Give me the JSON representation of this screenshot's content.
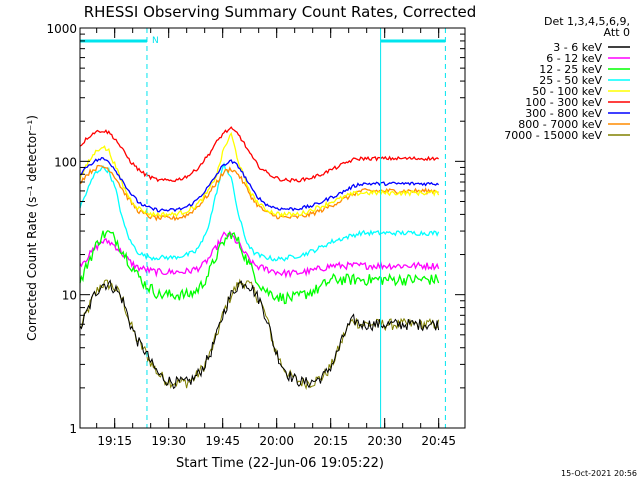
{
  "chart_data": {
    "type": "line",
    "title": "RHESSI Observing Summary Count Rates, Corrected",
    "xlabel": "Start Time (22-Jun-06 19:05:22)",
    "ylabel": "Corrected Count Rate (s⁻¹ detector⁻¹)",
    "y_scale": "log",
    "ylim": [
      1,
      1000
    ],
    "x_minutes_range": [
      0,
      100
    ],
    "x_tick_labels": [
      "19:15",
      "19:30",
      "19:45",
      "20:00",
      "20:15",
      "20:30",
      "20:45"
    ],
    "y_tick_labels": [
      "1",
      "10",
      "100",
      "1000"
    ],
    "legend_header": [
      "Det 1,3,4,5,6,9,",
      "Att 0"
    ],
    "legend_position": "right",
    "footer_date": "15-Oct-2021 20:56",
    "night_marker_label": "N",
    "intervals": {
      "color": "#00e5ee",
      "solid_lines_min": [
        0,
        83.5
      ],
      "dashed_lines_min": [
        18.6,
        101.5
      ],
      "top_bars_min": [
        [
          0,
          18.6
        ],
        [
          83.5,
          101.5
        ]
      ]
    },
    "x_minutes_grid": [
      0,
      2,
      4,
      6,
      8,
      10,
      12,
      14,
      16,
      18,
      20,
      22,
      24,
      26,
      28,
      30,
      32,
      34,
      36,
      38,
      40,
      42,
      44,
      46,
      48,
      50,
      52,
      54,
      56,
      58,
      60,
      62,
      64,
      66,
      68,
      70,
      72,
      74,
      76,
      78,
      80,
      82,
      84,
      86,
      88,
      90,
      92,
      94,
      96,
      98,
      100
    ],
    "series": [
      {
        "name": "3 - 6 keV",
        "color": "#000000",
        "noise": 0.1,
        "values": [
          5.5,
          7.5,
          10,
          12,
          12,
          11,
          9,
          6,
          4.5,
          3.8,
          3,
          2.5,
          2.3,
          2.2,
          2.2,
          2.2,
          2.4,
          2.8,
          3.5,
          5,
          7.5,
          10,
          12,
          12.5,
          11,
          9,
          6.5,
          4,
          3,
          2.5,
          2.3,
          2.2,
          2.2,
          2.3,
          2.5,
          3,
          4,
          5.5,
          6.5,
          6,
          6,
          6,
          6,
          6,
          6,
          6,
          6,
          6,
          6,
          6,
          6
        ]
      },
      {
        "name": "6 - 12 keV",
        "color": "#ff00ff",
        "noise": 0.06,
        "values": [
          17,
          19,
          22,
          25,
          25,
          23,
          20,
          17.5,
          16,
          15.5,
          15,
          14.8,
          14.8,
          14.8,
          14.8,
          15,
          15.5,
          16.5,
          19,
          23,
          28,
          28,
          24,
          20,
          17,
          16,
          15.5,
          15,
          14.5,
          14.5,
          14.5,
          14.8,
          15,
          15.5,
          16,
          16.5,
          16.5,
          16.5,
          16.5,
          16.5,
          16.5,
          16.5,
          16.5,
          16.5,
          16.5,
          16.5,
          16.5,
          16.5,
          16.5,
          16.5,
          16.5
        ]
      },
      {
        "name": "12 - 25 keV",
        "color": "#00ff00",
        "noise": 0.1,
        "values": [
          12,
          17,
          22,
          28,
          29,
          26,
          21,
          17,
          14,
          12,
          11,
          10,
          10,
          10,
          10,
          10,
          10.5,
          12,
          15,
          20,
          25,
          29,
          25,
          19,
          15,
          12,
          10.5,
          10,
          9.5,
          9.5,
          9.5,
          10,
          10.5,
          11,
          12,
          13,
          13,
          13,
          13,
          13,
          13,
          13,
          13,
          13,
          13,
          13,
          13,
          13,
          13,
          13,
          13
        ]
      },
      {
        "name": "25 - 50 keV",
        "color": "#00ffff",
        "noise": 0.04,
        "values": [
          45,
          60,
          80,
          90,
          85,
          60,
          35,
          25,
          21,
          19.5,
          19,
          19,
          19,
          19,
          19.5,
          20,
          21,
          25,
          35,
          60,
          95,
          75,
          40,
          26,
          21,
          19.5,
          19,
          18.5,
          18.5,
          19,
          19.5,
          20,
          21,
          22,
          23.5,
          25,
          26,
          27,
          28,
          29,
          29,
          29,
          29,
          29,
          29,
          29,
          29,
          29,
          29,
          29,
          29
        ]
      },
      {
        "name": "50 - 100 keV",
        "color": "#ffff00",
        "noise": 0.04,
        "values": [
          75,
          95,
          115,
          130,
          120,
          90,
          65,
          52,
          45,
          42,
          40,
          40,
          40,
          40,
          41,
          43,
          46,
          52,
          62,
          80,
          125,
          160,
          100,
          70,
          55,
          47,
          43,
          41,
          40,
          40,
          40,
          41,
          43,
          45,
          47,
          50,
          52,
          55,
          57,
          58,
          58,
          58,
          58,
          58,
          58,
          58,
          58,
          58,
          58,
          58,
          58
        ]
      },
      {
        "name": "100 - 300 keV",
        "color": "#ff0000",
        "noise": 0.03,
        "values": [
          130,
          150,
          165,
          170,
          165,
          145,
          120,
          100,
          88,
          80,
          75,
          72,
          72,
          72,
          74,
          78,
          85,
          98,
          115,
          140,
          165,
          175,
          160,
          130,
          105,
          90,
          82,
          76,
          73,
          72,
          72,
          73,
          75,
          78,
          82,
          87,
          92,
          98,
          103,
          105,
          105,
          105,
          105,
          105,
          105,
          105,
          105,
          105,
          105,
          105,
          105
        ]
      },
      {
        "name": "300 - 800 keV",
        "color": "#0000ff",
        "noise": 0.03,
        "values": [
          80,
          92,
          100,
          105,
          100,
          85,
          70,
          58,
          50,
          46,
          44,
          43,
          43,
          43,
          44,
          46,
          50,
          57,
          66,
          80,
          95,
          100,
          92,
          75,
          60,
          52,
          47,
          45,
          44,
          44,
          44,
          45,
          46,
          48,
          51,
          54,
          57,
          61,
          65,
          68,
          68,
          68,
          68,
          68,
          68,
          68,
          68,
          68,
          68,
          68,
          68
        ]
      },
      {
        "name": "800 - 7000 keV",
        "color": "#ff8c00",
        "noise": 0.04,
        "values": [
          70,
          80,
          88,
          92,
          88,
          75,
          60,
          50,
          43,
          40,
          38,
          37.5,
          37.5,
          37.5,
          38,
          40,
          44,
          50,
          58,
          70,
          83,
          88,
          80,
          65,
          52,
          45,
          41,
          39,
          38,
          38,
          38,
          39,
          40,
          42,
          44,
          47,
          50,
          53,
          57,
          60,
          60,
          60,
          60,
          60,
          60,
          60,
          60,
          60,
          60,
          60,
          60
        ]
      },
      {
        "name": "7000 - 15000 keV",
        "color": "#808000",
        "noise": 0.1,
        "values": [
          5.5,
          7.5,
          10,
          12,
          12,
          11,
          9,
          6,
          4.5,
          3.8,
          3,
          2.5,
          2.3,
          2.2,
          2.2,
          2.2,
          2.4,
          2.8,
          3.5,
          5,
          7.5,
          10,
          12,
          12.5,
          11,
          9,
          6.5,
          4,
          3,
          2.5,
          2.3,
          2.2,
          2.2,
          2.3,
          2.5,
          3,
          4,
          5.5,
          6.5,
          6,
          6,
          6,
          6,
          6,
          6,
          6,
          6,
          6,
          6,
          6,
          6
        ]
      }
    ]
  }
}
